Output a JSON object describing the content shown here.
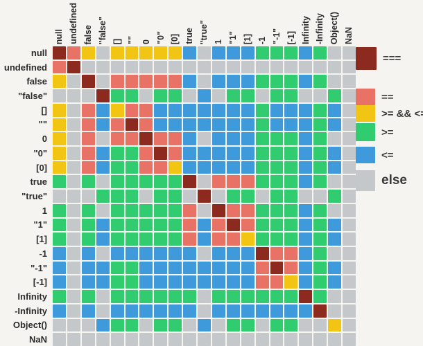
{
  "chart_data": {
    "type": "heatmap",
    "description": "JavaScript comparison result matrix: row value compared against column value",
    "values": [
      "null",
      "undefined",
      "false",
      "\"false\"",
      "[]",
      "\"\"",
      "0",
      "\"0\"",
      "[0]",
      "true",
      "\"true\"",
      "1",
      "\"1\"",
      "[1]",
      "-1",
      "\"-1\"",
      "[-1]",
      "Infinity",
      "-Infinity",
      "Object()",
      "NaN"
    ],
    "legend": [
      {
        "code": "D",
        "label": "===",
        "color": "#8d2a20"
      },
      {
        "code": "E",
        "label": "==",
        "color": "#e87266"
      },
      {
        "code": "Y",
        "label": ">= && <=",
        "color": "#f2c413"
      },
      {
        "code": "G",
        "label": ">=",
        "color": "#31cb70"
      },
      {
        "code": "B",
        "label": "<=",
        "color": "#3e9ada"
      },
      {
        "code": "X",
        "label": "else",
        "color": "#c5c8ca"
      }
    ],
    "matrix": [
      "DEYXYYYYYBXBBBGGGBGXX",
      "EDXXXXXXXXXXXXXXXXXXX",
      "YXDXEEEEEBXBBBGGGBGXX",
      "XXXDGGXGGXBXGGXGGXXGX",
      "YXEBYEEBBBBBBBGBBBGBX",
      "YXEBEDEBBBBBBBGBBBGBX",
      "YXEXEEDEEBXBBBGGGBGXX",
      "YXEBGGEDEBBBBBGGGBGBX",
      "YXEBGGEEYBBBBBGGGBGBX",
      "GXGXGGGGGDXEEEGGGBGXX",
      "XXXGGGXGGXDXGGXGGXXGX",
      "GXGXGGGGGEXDEEGGGBGXX",
      "GXGBGGGGGEBEDEGGGBGBX",
      "GXGBGGGGGEBEEYGGGBGBX",
      "BXBXBBBBBBXBBBDEEBGXX",
      "BXBBGGBBBBBBBBEDEBGBX",
      "BXBBGGBBBBBBBBEEYBGBX",
      "GXGXGGGGGGXGGGGGGDGXX",
      "BXBXBBBBBBXBBBBBBBDXX",
      "XXXBGGXGGXBXGGXGGXXYX",
      "XXXXXXXXXXXXXXXXXXXXX"
    ]
  }
}
